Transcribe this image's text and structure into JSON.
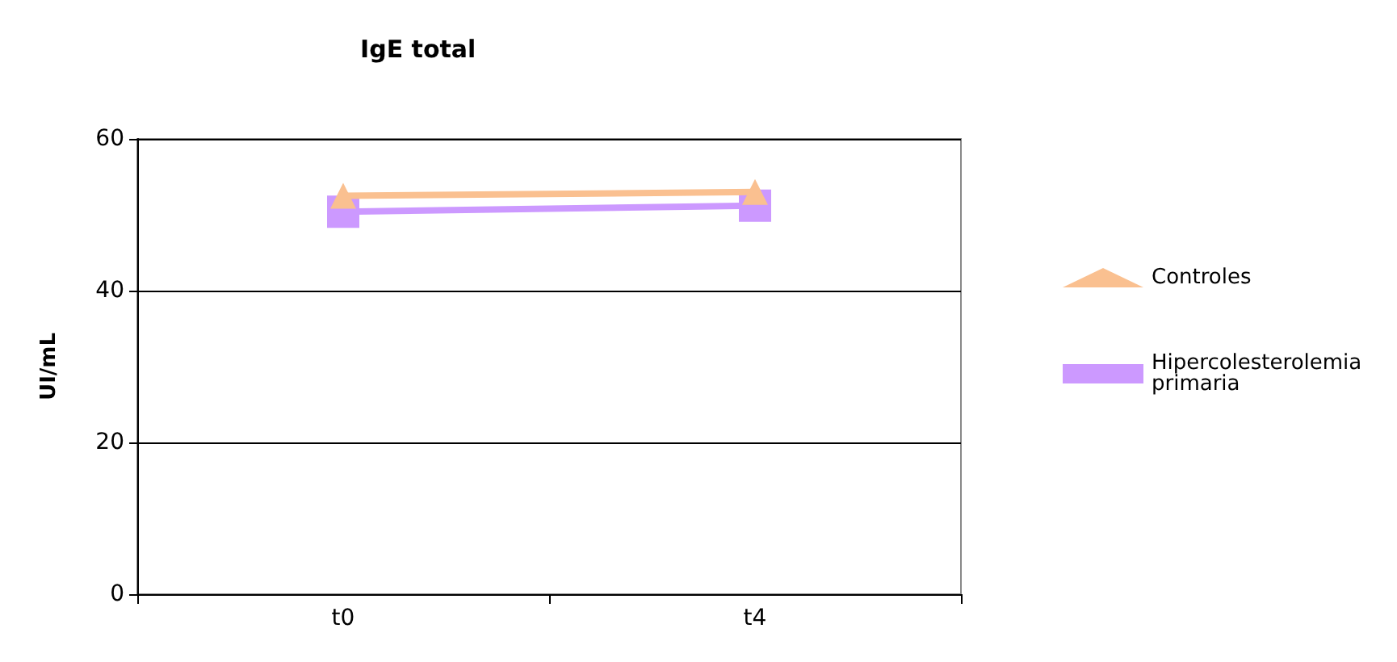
{
  "chart_data": {
    "type": "line",
    "title": "IgE total",
    "ylabel": "UI/mL",
    "categories": [
      "t0",
      "t4"
    ],
    "series": [
      {
        "name": "Controles",
        "color": "#fac090",
        "values": [
          52.5,
          53.0
        ],
        "marker": "triangle"
      },
      {
        "name": "Hipercolesterolemia primaria",
        "color": "#cc99ff",
        "values": [
          50.4,
          51.2
        ],
        "marker": "square"
      }
    ],
    "ylim": [
      0,
      60
    ],
    "yticks": [
      0,
      20,
      40,
      60
    ],
    "grid": "y",
    "legend": "right"
  }
}
